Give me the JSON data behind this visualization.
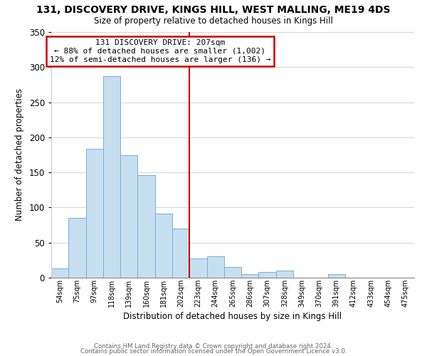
{
  "title1": "131, DISCOVERY DRIVE, KINGS HILL, WEST MALLING, ME19 4DS",
  "title2": "Size of property relative to detached houses in Kings Hill",
  "xlabel": "Distribution of detached houses by size in Kings Hill",
  "ylabel": "Number of detached properties",
  "bar_color": "#c6dff0",
  "bar_edgecolor": "#7aaed6",
  "bin_labels": [
    "54sqm",
    "75sqm",
    "97sqm",
    "118sqm",
    "139sqm",
    "160sqm",
    "181sqm",
    "202sqm",
    "223sqm",
    "244sqm",
    "265sqm",
    "286sqm",
    "307sqm",
    "328sqm",
    "349sqm",
    "370sqm",
    "391sqm",
    "412sqm",
    "433sqm",
    "454sqm",
    "475sqm"
  ],
  "bar_heights": [
    13,
    85,
    184,
    287,
    175,
    146,
    91,
    70,
    27,
    30,
    15,
    5,
    8,
    10,
    0,
    0,
    5,
    0,
    0,
    0,
    0
  ],
  "vline_x": 7.5,
  "vline_color": "#cc0000",
  "annotation_title": "131 DISCOVERY DRIVE: 207sqm",
  "annotation_line1": "← 88% of detached houses are smaller (1,002)",
  "annotation_line2": "12% of semi-detached houses are larger (136) →",
  "footer1": "Contains HM Land Registry data © Crown copyright and database right 2024.",
  "footer2": "Contains public sector information licensed under the Open Government Licence v3.0.",
  "ylim": [
    0,
    350
  ],
  "yticks": [
    0,
    50,
    100,
    150,
    200,
    250,
    300,
    350
  ],
  "background_color": "#ffffff",
  "grid_color": "#cccccc"
}
